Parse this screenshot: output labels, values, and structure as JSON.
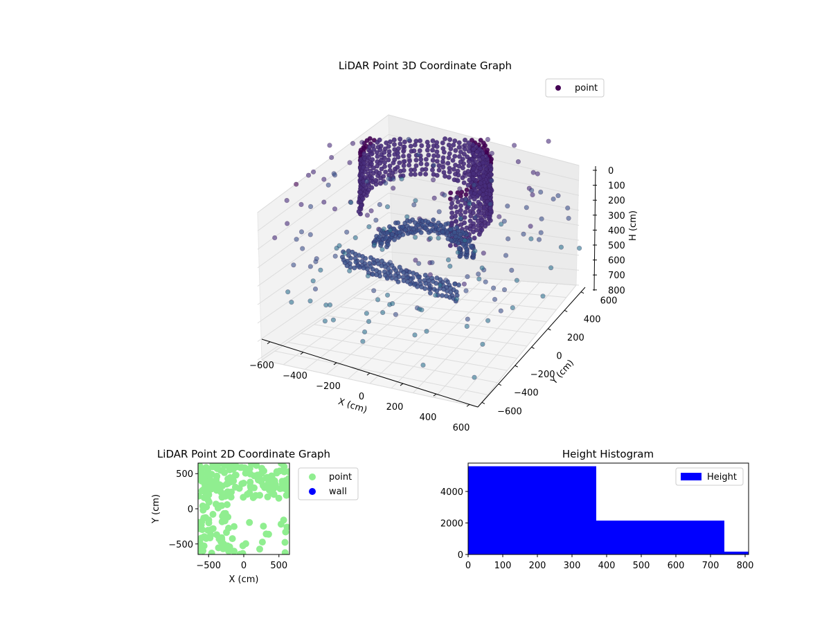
{
  "chart_data": [
    {
      "type": "scatter",
      "title": "LiDAR Point 3D Coordinate Graph",
      "xlabel": "X (cm)",
      "ylabel": "Y (cm)",
      "zlabel": "H (cm)",
      "xlim": [
        -650,
        650
      ],
      "ylim": [
        -650,
        650
      ],
      "zlim": [
        800,
        0
      ],
      "x_ticks": [
        "−600",
        "−400",
        "−200",
        "0",
        "200",
        "400",
        "600"
      ],
      "y_ticks": [
        "−600",
        "−400",
        "−200",
        "0",
        "200",
        "400",
        "600"
      ],
      "z_ticks": [
        "0",
        "100",
        "200",
        "300",
        "400",
        "500",
        "600",
        "700",
        "800"
      ],
      "series": [
        {
          "name": "point",
          "color": "#440154",
          "structures": [
            {
              "kind": "curved-wall",
              "r": 350,
              "a0": -40,
              "a1": 215,
              "h0": 90,
              "h1": 350
            },
            {
              "kind": "arc",
              "r": 270,
              "a0": 15,
              "a1": 200,
              "h": 500
            },
            {
              "kind": "column",
              "x": 150,
              "y": 250,
              "h0": 100,
              "h1": 330
            },
            {
              "kind": "wall-band",
              "x0": -250,
              "x1": 450,
              "y": -480,
              "h0": 380,
              "h1": 450
            }
          ],
          "scatter_h": [
            560,
            760
          ]
        }
      ],
      "grid": true,
      "legend": "top-right",
      "colormap": "viridis"
    },
    {
      "type": "scatter",
      "title": "LiDAR Point 2D Coordinate Graph",
      "xlabel": "X (cm)",
      "ylabel": "Y (cm)",
      "xlim": [
        -650,
        650
      ],
      "ylim": [
        -650,
        650
      ],
      "x_ticks": [
        "−500",
        "0",
        "500"
      ],
      "y_ticks": [
        "500",
        "0",
        "−500"
      ],
      "series": [
        {
          "name": "point",
          "color": "#90ee90"
        },
        {
          "name": "wall",
          "color": "#0000ff"
        }
      ],
      "legend": "outside-right"
    },
    {
      "type": "bar",
      "title": "Height Histogram",
      "xlim": [
        0,
        810
      ],
      "ylim": [
        0,
        5800
      ],
      "x_ticks": [
        "0",
        "100",
        "200",
        "300",
        "400",
        "500",
        "600",
        "700",
        "800"
      ],
      "y_ticks": [
        "0",
        "2000",
        "4000"
      ],
      "bins": [
        [
          0,
          370
        ],
        [
          370,
          740
        ],
        [
          740,
          810
        ]
      ],
      "values": [
        5600,
        2150,
        180
      ],
      "series": [
        {
          "name": "Height",
          "color": "#0000ff"
        }
      ],
      "legend": "top-right"
    }
  ]
}
